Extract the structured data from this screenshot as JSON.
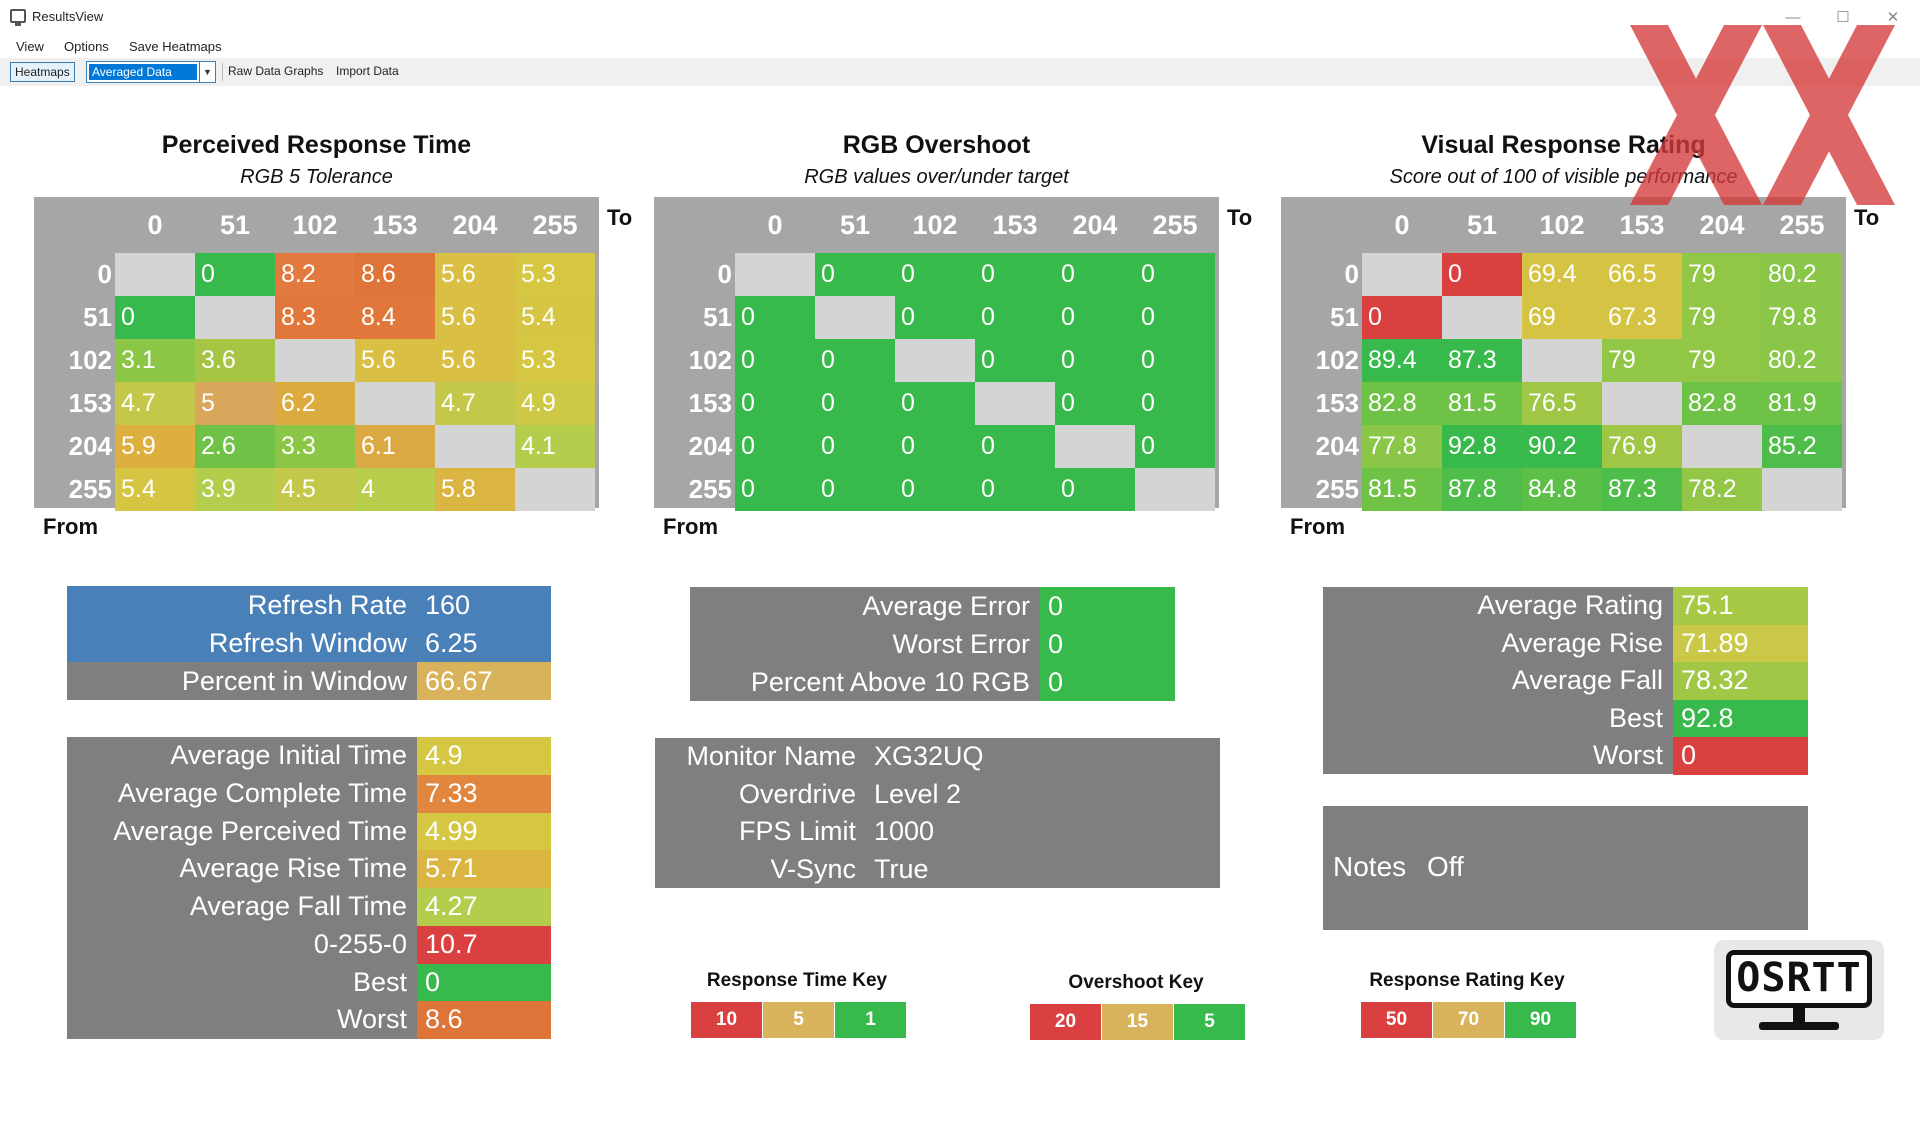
{
  "window": {
    "title": "ResultsView",
    "minimize": "—",
    "maximize": "☐",
    "close": "✕"
  },
  "menu": [
    "View",
    "Options",
    "Save Heatmaps"
  ],
  "toolbar": {
    "heatmaps": "Heatmaps",
    "dropdown_value": "Averaged Data",
    "raw_graphs": "Raw Data Graphs",
    "import": "Import Data"
  },
  "axis": {
    "to": "To",
    "from": "From",
    "levels": [
      "0",
      "51",
      "102",
      "153",
      "204",
      "255"
    ]
  },
  "heatmaps": [
    {
      "title": "Perceived Response Time",
      "subtitle": "RGB 5 Tolerance",
      "rows": [
        [
          "",
          "0",
          "8.2",
          "8.6",
          "5.6",
          "5.3"
        ],
        [
          "0",
          "",
          "8.3",
          "8.4",
          "5.6",
          "5.4"
        ],
        [
          "3.1",
          "3.6",
          "",
          "5.6",
          "5.6",
          "5.3"
        ],
        [
          "4.7",
          "5",
          "6.2",
          "",
          "4.7",
          "4.9"
        ],
        [
          "5.9",
          "2.6",
          "3.3",
          "6.1",
          "",
          "4.1"
        ],
        [
          "5.4",
          "3.9",
          "4.5",
          "4",
          "5.8",
          ""
        ]
      ],
      "colors": [
        [
          "",
          "#37b94b",
          "#e2793e",
          "#df7438",
          "#d9c044",
          "#d6c743"
        ],
        [
          "#37b94b",
          "",
          "#e1773b",
          "#e1773b",
          "#d9c044",
          "#d6c543"
        ],
        [
          "#8cc646",
          "#a6c545",
          "",
          "#d9c044",
          "#d9c044",
          "#d6c743"
        ],
        [
          "#c4c84a",
          "#d8a75c",
          "#dcab40",
          "",
          "#c4c84a",
          "#cdc947"
        ],
        [
          "#dcaf3f",
          "#70c246",
          "#8cc646",
          "#dba943",
          "",
          "#b5cd4c"
        ],
        [
          "#d6c543",
          "#b5cd4c",
          "#c4c84a",
          "#b7cd4c",
          "#dab542",
          ""
        ]
      ]
    },
    {
      "title": "RGB Overshoot",
      "subtitle": "RGB values over/under target",
      "rows": [
        [
          "",
          "0",
          "0",
          "0",
          "0",
          "0"
        ],
        [
          "0",
          "",
          "0",
          "0",
          "0",
          "0"
        ],
        [
          "0",
          "0",
          "",
          "0",
          "0",
          "0"
        ],
        [
          "0",
          "0",
          "0",
          "",
          "0",
          "0"
        ],
        [
          "0",
          "0",
          "0",
          "0",
          "",
          "0"
        ],
        [
          "0",
          "0",
          "0",
          "0",
          "0",
          ""
        ]
      ],
      "colors": "#37b94b"
    },
    {
      "title": "Visual Response Rating",
      "subtitle": "Score out of 100 of visible performance",
      "rows": [
        [
          "",
          "0",
          "69.4",
          "66.5",
          "79",
          "80.2"
        ],
        [
          "0",
          "",
          "69",
          "67.3",
          "79",
          "79.8"
        ],
        [
          "89.4",
          "87.3",
          "",
          "79",
          "79",
          "80.2"
        ],
        [
          "82.8",
          "81.5",
          "76.5",
          "",
          "82.8",
          "81.9"
        ],
        [
          "77.8",
          "92.8",
          "90.2",
          "76.9",
          "",
          "85.2"
        ],
        [
          "81.5",
          "87.8",
          "84.8",
          "87.3",
          "78.2",
          ""
        ]
      ],
      "colors": [
        [
          "",
          "#d9403f",
          "#d5c443",
          "#d5c443",
          "#92c646",
          "#8ac647"
        ],
        [
          "#d9403f",
          "",
          "#d5c443",
          "#d5c443",
          "#92c646",
          "#8ac647"
        ],
        [
          "#37b94b",
          "#37b94b",
          "",
          "#92c646",
          "#92c646",
          "#8ac647"
        ],
        [
          "#6ec347",
          "#6ec347",
          "#9fc745",
          "",
          "#6ec347",
          "#6ec347"
        ],
        [
          "#8ac647",
          "#37b94b",
          "#37b94b",
          "#9fc745",
          "",
          "#4fbd49"
        ],
        [
          "#6ec347",
          "#4fbd49",
          "#5bbf48",
          "#4fbd49",
          "#92c646",
          ""
        ]
      ]
    }
  ],
  "refresh": {
    "rows": [
      {
        "label": "Refresh Rate",
        "value": "160",
        "lc": "#4a80b8",
        "vc": "#4a80b8"
      },
      {
        "label": "Refresh Window",
        "value": "6.25",
        "lc": "#4a80b8",
        "vc": "#4a80b8"
      },
      {
        "label": "Percent in Window",
        "value": "66.67",
        "lc": "#7f7f7f",
        "vc": "#d8b35b"
      }
    ]
  },
  "times": {
    "rows": [
      {
        "label": "Average Initial Time",
        "value": "4.9",
        "vc": "#d6c743"
      },
      {
        "label": "Average Complete Time",
        "value": "7.33",
        "vc": "#e0863e"
      },
      {
        "label": "Average Perceived Time",
        "value": "4.99",
        "vc": "#d6c743"
      },
      {
        "label": "Average Rise Time",
        "value": "5.71",
        "vc": "#dab542"
      },
      {
        "label": "Average Fall Time",
        "value": "4.27",
        "vc": "#b5cd4c"
      },
      {
        "label": "0-255-0",
        "value": "10.7",
        "vc": "#d9403f"
      },
      {
        "label": "Best",
        "value": "0",
        "vc": "#37b94b"
      },
      {
        "label": "Worst",
        "value": "8.6",
        "vc": "#df7438"
      }
    ]
  },
  "overshoot": {
    "rows": [
      {
        "label": "Average Error",
        "value": "0"
      },
      {
        "label": "Worst Error",
        "value": "0"
      },
      {
        "label": "Percent Above 10 RGB",
        "value": "0"
      }
    ],
    "value_color": "#37b94b"
  },
  "monitor": {
    "rows": [
      {
        "label": "Monitor Name",
        "value": "XG32UQ"
      },
      {
        "label": "Overdrive",
        "value": "Level 2"
      },
      {
        "label": "FPS Limit",
        "value": "1000"
      },
      {
        "label": "V-Sync",
        "value": "True"
      }
    ]
  },
  "rating": {
    "rows": [
      {
        "label": "Average Rating",
        "value": "75.1",
        "vc": "#a8c946"
      },
      {
        "label": "Average Rise",
        "value": "71.89",
        "vc": "#c9c947"
      },
      {
        "label": "Average Fall",
        "value": "78.32",
        "vc": "#a0c846"
      },
      {
        "label": "Best",
        "value": "92.8",
        "vc": "#37b94b"
      },
      {
        "label": "Worst",
        "value": "0",
        "vc": "#d9403f"
      }
    ]
  },
  "notes": {
    "label": "Notes",
    "value": "Off"
  },
  "keys": [
    {
      "title": "Response Time Key",
      "values": [
        "10",
        "5",
        "1"
      ],
      "colors": [
        "#d9403f",
        "#d8b35b",
        "#37b94b"
      ]
    },
    {
      "title": "Overshoot Key",
      "values": [
        "20",
        "15",
        "5"
      ],
      "colors": [
        "#d9403f",
        "#d8b35b",
        "#37b94b"
      ]
    },
    {
      "title": "Response Rating Key",
      "values": [
        "50",
        "70",
        "90"
      ],
      "colors": [
        "#d9403f",
        "#d8b35b",
        "#37b94b"
      ]
    }
  ],
  "logo": {
    "text": "OSRTT"
  },
  "watermark": {
    "text": "XX",
    "color": "#d63a3a"
  }
}
